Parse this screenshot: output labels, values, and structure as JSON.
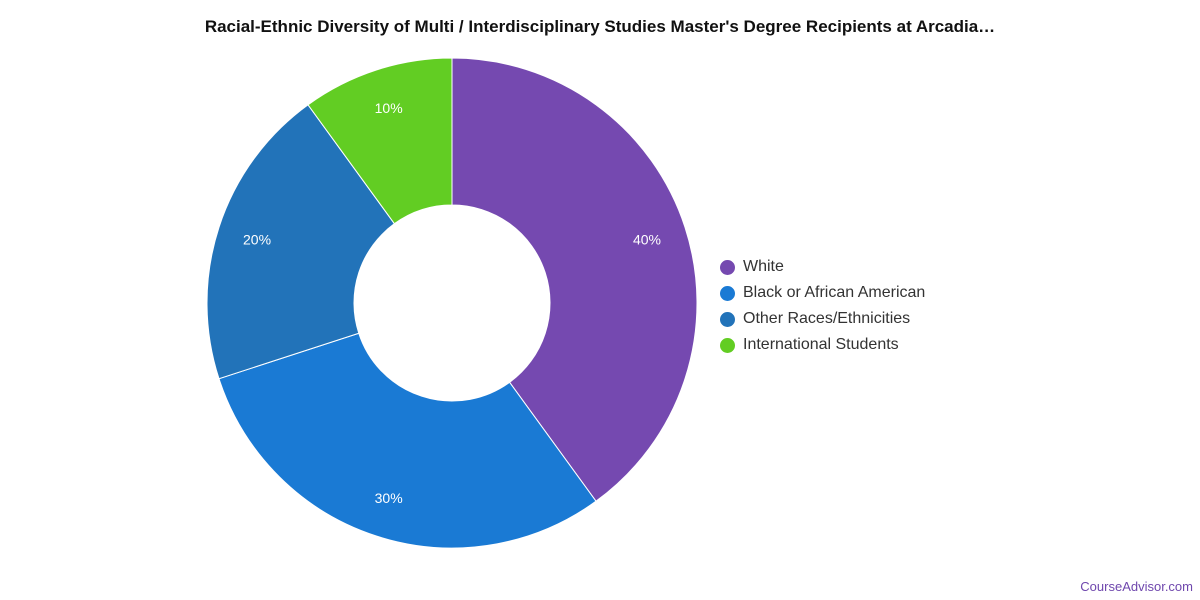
{
  "chart_data": {
    "type": "pie",
    "donut": true,
    "title": "Racial-Ethnic Diversity of Multi / Interdisciplinary Studies Master's Degree Recipients at Arcadia…",
    "categories": [
      "White",
      "Black or African American",
      "Other Races/Ethnicities",
      "International Students"
    ],
    "values": [
      40,
      30,
      20,
      10
    ],
    "value_labels": [
      "40%",
      "30%",
      "20%",
      "10%"
    ],
    "colors": [
      "#7549b0",
      "#1a7ad4",
      "#2273b9",
      "#62cd23"
    ],
    "legend_position": "right"
  },
  "credit": "CourseAdvisor.com"
}
